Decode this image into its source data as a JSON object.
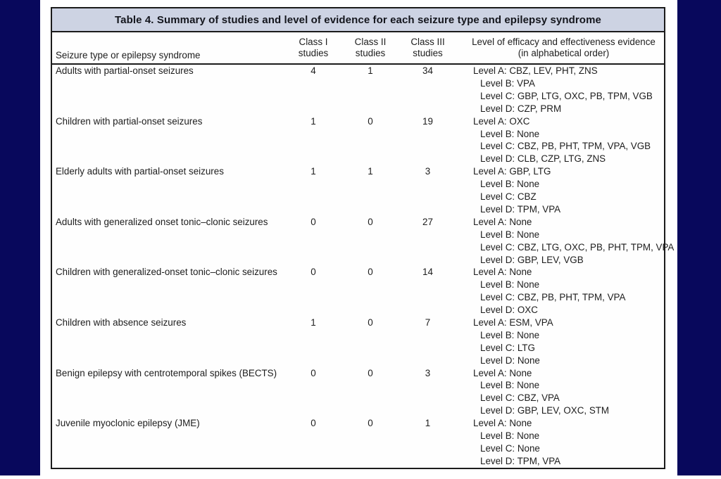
{
  "colors": {
    "frame_navy": "#08085c",
    "title_bar_bg": "#cdd3e3",
    "table_border": "#1b1b1b",
    "text": "#1d1d1d"
  },
  "table": {
    "title": "Table 4.  Summary of studies and level of evidence for each seizure type and epilepsy syndrome",
    "headers": {
      "col1": "Seizure type or epilepsy syndrome",
      "col2_line1": "Class I",
      "col2_line2": "studies",
      "col3_line1": "Class II",
      "col3_line2": "studies",
      "col4_line1": "Class III",
      "col4_line2": "studies",
      "col5_line1": "Level of efficacy and effectiveness evidence",
      "col5_line2": "(in alphabetical order)"
    },
    "rows": [
      {
        "label": "Adults with partial-onset seizures",
        "class1": "4",
        "class2": "1",
        "class3": "34",
        "levels": [
          "Level A: CBZ, LEV, PHT, ZNS",
          "Level B: VPA",
          "Level C: GBP, LTG, OXC, PB, TPM, VGB",
          "Level D: CZP, PRM"
        ]
      },
      {
        "label": "Children with partial-onset seizures",
        "class1": "1",
        "class2": "0",
        "class3": "19",
        "levels": [
          "Level A: OXC",
          "Level B: None",
          "Level C: CBZ, PB, PHT, TPM, VPA, VGB",
          "Level D: CLB, CZP, LTG, ZNS"
        ]
      },
      {
        "label": "Elderly adults with partial-onset seizures",
        "class1": "1",
        "class2": "1",
        "class3": "3",
        "levels": [
          "Level A: GBP, LTG",
          "Level B: None",
          "Level C: CBZ",
          "Level D: TPM, VPA"
        ]
      },
      {
        "label": "Adults with generalized onset tonic–clonic seizures",
        "class1": "0",
        "class2": "0",
        "class3": "27",
        "levels": [
          "Level A: None",
          "Level B: None",
          "Level C: CBZ, LTG, OXC, PB, PHT, TPM, VPA",
          "Level D: GBP, LEV, VGB"
        ]
      },
      {
        "label": "Children with generalized-onset tonic–clonic seizures",
        "class1": "0",
        "class2": "0",
        "class3": "14",
        "levels": [
          "Level A: None",
          "Level B: None",
          "Level C: CBZ, PB, PHT, TPM, VPA",
          "Level D: OXC"
        ]
      },
      {
        "label": "Children with absence seizures",
        "class1": "1",
        "class2": "0",
        "class3": "7",
        "levels": [
          "Level A: ESM, VPA",
          "Level B: None",
          "Level C: LTG",
          "Level D: None"
        ]
      },
      {
        "label": "Benign epilepsy with centrotemporal spikes (BECTS)",
        "class1": "0",
        "class2": "0",
        "class3": "3",
        "levels": [
          "Level A: None",
          "Level B: None",
          "Level C: CBZ, VPA",
          "Level D: GBP, LEV, OXC, STM"
        ]
      },
      {
        "label": "Juvenile myoclonic epilepsy (JME)",
        "class1": "0",
        "class2": "0",
        "class3": "1",
        "levels": [
          "Level A: None",
          "Level B: None",
          "Level C: None",
          "Level D: TPM, VPA"
        ]
      }
    ]
  }
}
